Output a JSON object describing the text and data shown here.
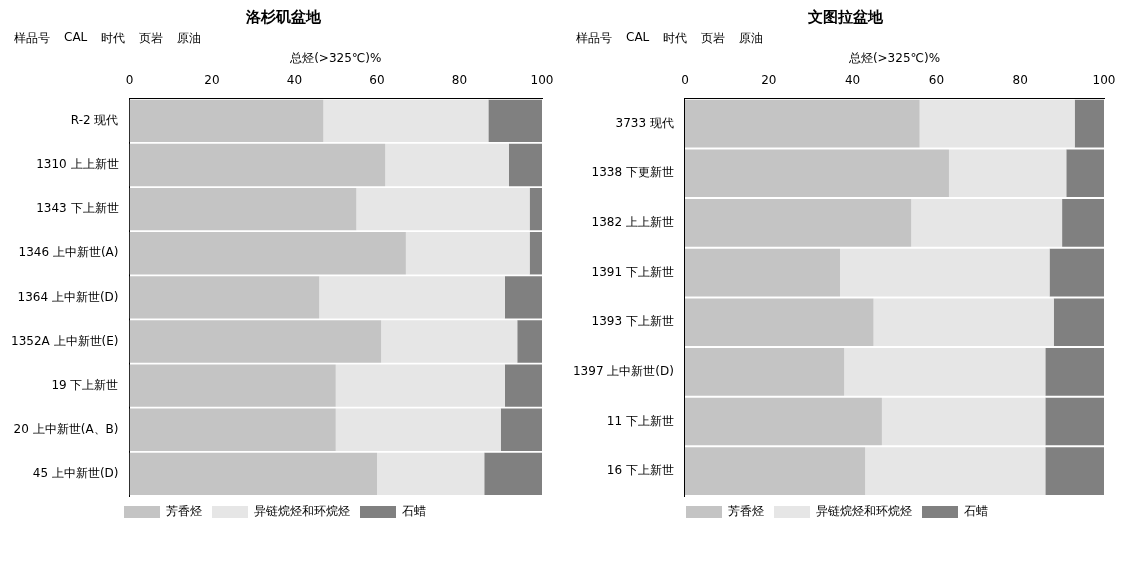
{
  "chart_data": [
    {
      "type": "bar",
      "orientation": "horizontal",
      "stacked": true,
      "title": "洛杉矶盆地",
      "xlabel": "总烃(>325℃)%",
      "annotations": [
        "样品号",
        "CAL",
        "时代",
        "页岩",
        "原油"
      ],
      "categories": [
        "R-2 现代",
        "1310 上上新世",
        "1343 下上新世",
        "1346 上中新世(A)",
        "1364 上中新世(D)",
        "1352A 上中新世(E)",
        "19 下上新世",
        "20 上中新世(A、B)",
        "45 上中新世(D)"
      ],
      "xlim": [
        0,
        100
      ],
      "xticks": [
        0,
        20,
        40,
        60,
        80,
        100
      ],
      "grid": false,
      "legend": "bottom",
      "series": [
        {
          "name": "芳香烃",
          "color": "#c4c4c4",
          "values": [
            47,
            62,
            55,
            67,
            46,
            61,
            50,
            50,
            60
          ]
        },
        {
          "name": "异链烷烃和环烷烃",
          "color": "#e6e6e6",
          "values": [
            40,
            30,
            42,
            30,
            45,
            33,
            41,
            40,
            26
          ]
        },
        {
          "name": "石蜡",
          "color": "#808080",
          "values": [
            13,
            8,
            3,
            3,
            9,
            6,
            9,
            10,
            14
          ]
        }
      ]
    },
    {
      "type": "bar",
      "orientation": "horizontal",
      "stacked": true,
      "title": "文图拉盆地",
      "xlabel": "总烃(>325℃)%",
      "annotations": [
        "样品号",
        "CAL",
        "时代",
        "页岩",
        "原油"
      ],
      "categories": [
        "3733 现代",
        "1338 下更新世",
        "1382 上上新世",
        "1391 下上新世",
        "1393 下上新世",
        "1397 上中新世(D)",
        "11 下上新世",
        "16 下上新世"
      ],
      "xlim": [
        0,
        100
      ],
      "xticks": [
        0,
        20,
        40,
        60,
        80,
        100
      ],
      "grid": false,
      "legend": "bottom",
      "series": [
        {
          "name": "芳香烃",
          "color": "#c4c4c4",
          "values": [
            56,
            63,
            54,
            37,
            45,
            38,
            47,
            43
          ]
        },
        {
          "name": "异链烷烃和环烷烃",
          "color": "#e6e6e6",
          "values": [
            37,
            28,
            36,
            50,
            43,
            48,
            39,
            43
          ]
        },
        {
          "name": "石蜡",
          "color": "#808080",
          "values": [
            7,
            9,
            10,
            13,
            12,
            14,
            14,
            14
          ]
        }
      ]
    }
  ]
}
